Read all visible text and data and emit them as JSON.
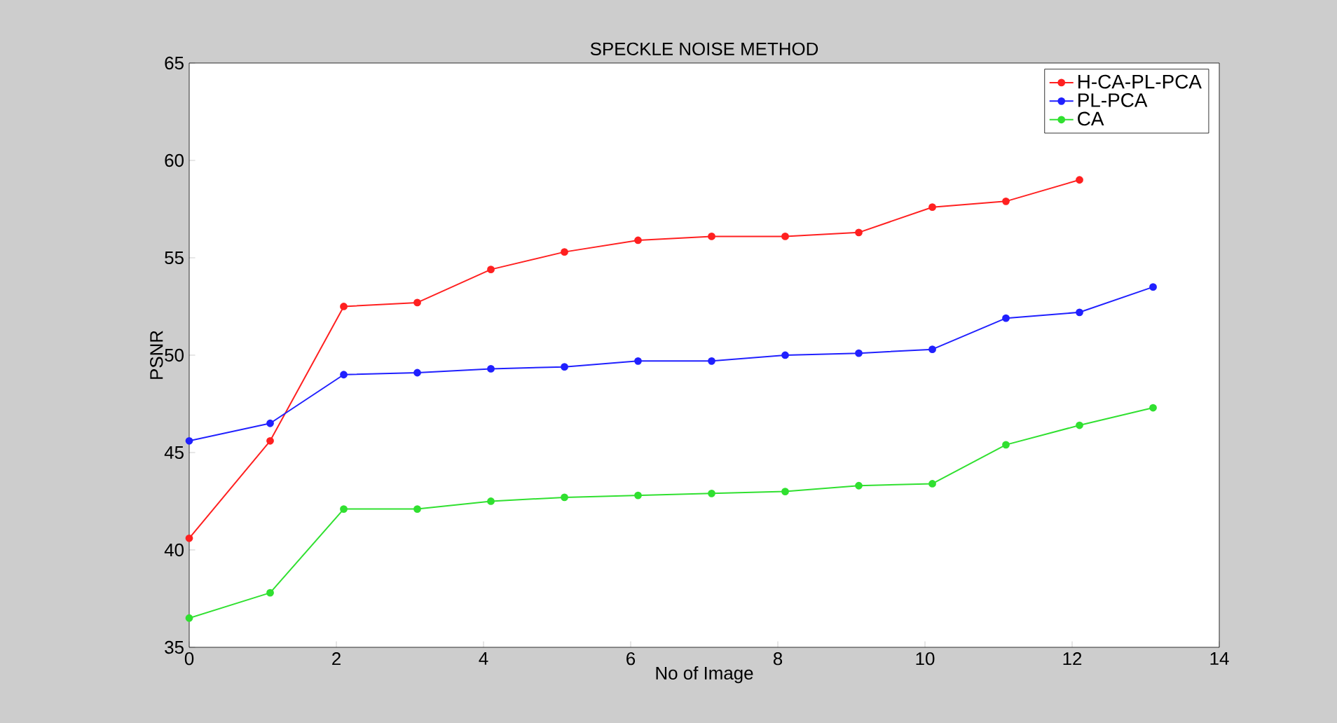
{
  "chart_data": {
    "type": "line",
    "title": "SPECKLE NOISE METHOD",
    "xlabel": "No of Image",
    "ylabel": "PSNR",
    "x": [
      0,
      1.1,
      2.1,
      3.1,
      4.1,
      5.1,
      6.1,
      7.1,
      8.1,
      9.1,
      10.1,
      11.1,
      12.1,
      13.1
    ],
    "series": [
      {
        "name": "H-CA-PL-PCA",
        "color": "#ff2020",
        "values": [
          40.6,
          45.6,
          52.5,
          52.7,
          54.4,
          55.3,
          55.9,
          56.1,
          56.1,
          56.3,
          57.6,
          57.9,
          59.0,
          null
        ]
      },
      {
        "name": "PL-PCA",
        "color": "#2020ff",
        "values": [
          45.6,
          46.5,
          49.0,
          49.1,
          49.3,
          49.4,
          49.7,
          49.7,
          50.0,
          50.1,
          50.3,
          51.9,
          52.2,
          53.5
        ]
      },
      {
        "name": "CA",
        "color": "#30e030",
        "values": [
          36.5,
          37.8,
          42.1,
          42.1,
          42.5,
          42.7,
          42.8,
          42.9,
          43.0,
          43.3,
          43.4,
          45.4,
          46.4,
          47.3
        ]
      }
    ],
    "xlim": [
      0,
      14
    ],
    "xticks": [
      0,
      2,
      4,
      6,
      8,
      10,
      12,
      14
    ],
    "ylim": [
      35,
      65
    ],
    "yticks": [
      35,
      40,
      45,
      50,
      55,
      60,
      65
    ],
    "legend": "top right",
    "marker": "circle",
    "line_style": "solid",
    "grid": false
  }
}
